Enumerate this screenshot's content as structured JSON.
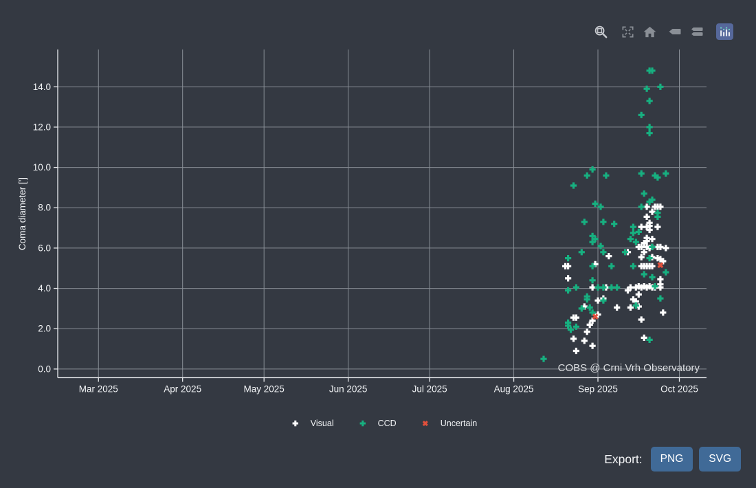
{
  "colors": {
    "background": "#343942",
    "grid": "#888e96",
    "axis": "#e8eaed",
    "visual": "#ffffff",
    "ccd": "#17b080",
    "uncertain": "#e2503c",
    "button_blue": "#406a97",
    "modebar_icon": "#8a8f96",
    "modebar_icon_active": "#c8cbd0",
    "plotly_logo_bg": "#56689b"
  },
  "modebar": {
    "buttons": [
      {
        "name": "zoom",
        "active": true
      },
      {
        "name": "autoscale",
        "active": false
      },
      {
        "name": "reset-home",
        "active": false
      },
      {
        "name": "hover-closest",
        "active": false
      },
      {
        "name": "hover-compare",
        "active": false
      },
      {
        "name": "plotly-logo",
        "active": false
      }
    ]
  },
  "chart_data": {
    "type": "scatter",
    "title": "",
    "xlabel": "",
    "ylabel": "Coma diameter [']",
    "watermark": "COBS @ Crni Vrh Observatory",
    "grid": true,
    "legend_position": "bottom-center",
    "xlim": [
      "2025-02-14",
      "2025-10-11"
    ],
    "ylim": [
      -0.43,
      15.85
    ],
    "x_ticks": [
      {
        "label": "Mar 2025",
        "date": "2025-03-01"
      },
      {
        "label": "Apr 2025",
        "date": "2025-04-01"
      },
      {
        "label": "May 2025",
        "date": "2025-05-01"
      },
      {
        "label": "Jun 2025",
        "date": "2025-06-01"
      },
      {
        "label": "Jul 2025",
        "date": "2025-07-01"
      },
      {
        "label": "Aug 2025",
        "date": "2025-08-01"
      },
      {
        "label": "Sep 2025",
        "date": "2025-09-01"
      },
      {
        "label": "Oct 2025",
        "date": "2025-10-01"
      }
    ],
    "y_ticks": [
      {
        "label": "0.0",
        "value": 0
      },
      {
        "label": "2.0",
        "value": 2
      },
      {
        "label": "4.0",
        "value": 4
      },
      {
        "label": "6.0",
        "value": 6
      },
      {
        "label": "8.0",
        "value": 8
      },
      {
        "label": "10.0",
        "value": 10
      },
      {
        "label": "12.0",
        "value": 12
      },
      {
        "label": "14.0",
        "value": 14
      }
    ],
    "series": [
      {
        "name": "Visual",
        "marker": "cross",
        "color": "#ffffff",
        "points": [
          [
            "2025-08-20",
            5.1
          ],
          [
            "2025-08-21",
            5.1
          ],
          [
            "2025-08-21",
            4.5
          ],
          [
            "2025-08-23",
            2.55
          ],
          [
            "2025-08-23",
            1.5
          ],
          [
            "2025-08-24",
            2.55
          ],
          [
            "2025-08-24",
            0.9
          ],
          [
            "2025-08-27",
            3.1
          ],
          [
            "2025-08-27",
            1.4
          ],
          [
            "2025-08-28",
            1.85
          ],
          [
            "2025-08-29",
            2.2
          ],
          [
            "2025-08-30",
            4.05
          ],
          [
            "2025-08-30",
            2.4
          ],
          [
            "2025-08-30",
            1.15
          ],
          [
            "2025-08-31",
            5.2
          ],
          [
            "2025-09-01",
            3.4
          ],
          [
            "2025-09-01",
            2.7
          ],
          [
            "2025-09-03",
            3.5
          ],
          [
            "2025-09-04",
            4.05
          ],
          [
            "2025-09-05",
            5.6
          ],
          [
            "2025-09-08",
            3.05
          ],
          [
            "2025-09-12",
            5.8
          ],
          [
            "2025-09-12",
            3.9
          ],
          [
            "2025-09-13",
            4.05
          ],
          [
            "2025-09-13",
            3.05
          ],
          [
            "2025-09-14",
            3.45
          ],
          [
            "2025-09-15",
            4.05
          ],
          [
            "2025-09-15",
            3.35
          ],
          [
            "2025-09-16",
            6.05
          ],
          [
            "2025-09-16",
            4.1
          ],
          [
            "2025-09-16",
            3.7
          ],
          [
            "2025-09-16",
            3.1
          ],
          [
            "2025-09-17",
            7.05
          ],
          [
            "2025-09-17",
            6.05
          ],
          [
            "2025-09-17",
            5.55
          ],
          [
            "2025-09-17",
            5.1
          ],
          [
            "2025-09-17",
            4.05
          ],
          [
            "2025-09-17",
            2.45
          ],
          [
            "2025-09-18",
            6.25
          ],
          [
            "2025-09-18",
            5.8
          ],
          [
            "2025-09-18",
            5.1
          ],
          [
            "2025-09-18",
            4.1
          ],
          [
            "2025-09-18",
            1.55
          ],
          [
            "2025-09-19",
            8.05
          ],
          [
            "2025-09-19",
            7.55
          ],
          [
            "2025-09-19",
            7.05
          ],
          [
            "2025-09-19",
            6.5
          ],
          [
            "2025-09-19",
            6.35
          ],
          [
            "2025-09-19",
            6.05
          ],
          [
            "2025-09-19",
            5.1
          ],
          [
            "2025-09-19",
            4.05
          ],
          [
            "2025-09-20",
            7.25
          ],
          [
            "2025-09-20",
            7.1
          ],
          [
            "2025-09-20",
            6.9
          ],
          [
            "2025-09-20",
            6.0
          ],
          [
            "2025-09-20",
            5.1
          ],
          [
            "2025-09-20",
            4.1
          ],
          [
            "2025-09-21",
            7.8
          ],
          [
            "2025-09-21",
            6.45
          ],
          [
            "2025-09-21",
            6.05
          ],
          [
            "2025-09-21",
            5.55
          ],
          [
            "2025-09-21",
            5.1
          ],
          [
            "2025-09-21",
            4.05
          ],
          [
            "2025-09-22",
            8.05
          ],
          [
            "2025-09-22",
            4.05
          ],
          [
            "2025-09-23",
            8.05
          ],
          [
            "2025-09-23",
            7.05
          ],
          [
            "2025-09-23",
            6.05
          ],
          [
            "2025-09-23",
            5.5
          ],
          [
            "2025-09-24",
            8.05
          ],
          [
            "2025-09-24",
            6.05
          ],
          [
            "2025-09-24",
            5.45
          ],
          [
            "2025-09-24",
            4.45
          ],
          [
            "2025-09-24",
            4.2
          ],
          [
            "2025-09-24",
            4.05
          ],
          [
            "2025-09-25",
            5.35
          ],
          [
            "2025-09-25",
            2.8
          ],
          [
            "2025-09-26",
            6.0
          ]
        ]
      },
      {
        "name": "CCD",
        "marker": "cross",
        "color": "#17b080",
        "points": [
          [
            "2025-08-12",
            0.5
          ],
          [
            "2025-08-21",
            5.5
          ],
          [
            "2025-08-21",
            3.9
          ],
          [
            "2025-08-21",
            2.3
          ],
          [
            "2025-08-21",
            2.15
          ],
          [
            "2025-08-22",
            1.95
          ],
          [
            "2025-08-23",
            9.1
          ],
          [
            "2025-08-24",
            4.05
          ],
          [
            "2025-08-24",
            2.1
          ],
          [
            "2025-08-26",
            5.8
          ],
          [
            "2025-08-26",
            3.0
          ],
          [
            "2025-08-27",
            7.3
          ],
          [
            "2025-08-28",
            9.6
          ],
          [
            "2025-08-28",
            3.6
          ],
          [
            "2025-08-28",
            3.45
          ],
          [
            "2025-08-29",
            3.05
          ],
          [
            "2025-08-30",
            9.9
          ],
          [
            "2025-08-30",
            6.6
          ],
          [
            "2025-08-30",
            6.3
          ],
          [
            "2025-08-30",
            5.1
          ],
          [
            "2025-08-30",
            4.4
          ],
          [
            "2025-08-30",
            2.8
          ],
          [
            "2025-08-31",
            8.2
          ],
          [
            "2025-08-31",
            6.45
          ],
          [
            "2025-09-01",
            4.05
          ],
          [
            "2025-09-02",
            8.05
          ],
          [
            "2025-09-02",
            6.1
          ],
          [
            "2025-09-03",
            7.3
          ],
          [
            "2025-09-03",
            5.8
          ],
          [
            "2025-09-03",
            4.05
          ],
          [
            "2025-09-03",
            3.4
          ],
          [
            "2025-09-04",
            9.6
          ],
          [
            "2025-09-06",
            5.1
          ],
          [
            "2025-09-06",
            4.05
          ],
          [
            "2025-09-07",
            7.2
          ],
          [
            "2025-09-08",
            4.05
          ],
          [
            "2025-09-11",
            5.8
          ],
          [
            "2025-09-13",
            6.45
          ],
          [
            "2025-09-14",
            7.05
          ],
          [
            "2025-09-14",
            6.75
          ],
          [
            "2025-09-14",
            5.1
          ],
          [
            "2025-09-15",
            6.3
          ],
          [
            "2025-09-15",
            3.15
          ],
          [
            "2025-09-16",
            6.8
          ],
          [
            "2025-09-17",
            12.6
          ],
          [
            "2025-09-17",
            9.7
          ],
          [
            "2025-09-17",
            8.05
          ],
          [
            "2025-09-18",
            8.7
          ],
          [
            "2025-09-18",
            4.7
          ],
          [
            "2025-09-19",
            13.9
          ],
          [
            "2025-09-20",
            14.8
          ],
          [
            "2025-09-20",
            13.3
          ],
          [
            "2025-09-20",
            12.0
          ],
          [
            "2025-09-20",
            11.7
          ],
          [
            "2025-09-20",
            8.3
          ],
          [
            "2025-09-20",
            5.5
          ],
          [
            "2025-09-20",
            1.45
          ],
          [
            "2025-09-21",
            14.8
          ],
          [
            "2025-09-21",
            8.4
          ],
          [
            "2025-09-21",
            6.05
          ],
          [
            "2025-09-21",
            4.55
          ],
          [
            "2025-09-22",
            9.6
          ],
          [
            "2025-09-22",
            4.1
          ],
          [
            "2025-09-23",
            9.5
          ],
          [
            "2025-09-23",
            7.75
          ],
          [
            "2025-09-23",
            7.55
          ],
          [
            "2025-09-24",
            14.0
          ],
          [
            "2025-09-24",
            3.5
          ],
          [
            "2025-09-26",
            9.7
          ],
          [
            "2025-09-26",
            4.8
          ]
        ]
      },
      {
        "name": "Uncertain",
        "marker": "x",
        "color": "#e2503c",
        "points": [
          [
            "2025-08-31",
            2.6
          ],
          [
            "2025-09-24",
            5.15
          ]
        ]
      }
    ]
  },
  "export": {
    "label": "Export:",
    "buttons": [
      {
        "label": "PNG"
      },
      {
        "label": "SVG"
      }
    ]
  }
}
